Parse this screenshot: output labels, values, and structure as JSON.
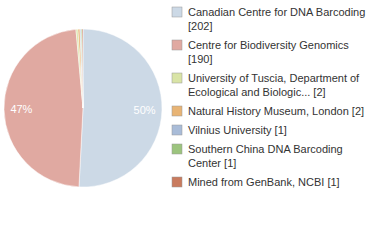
{
  "chart_data": {
    "type": "pie",
    "categories": [
      "Canadian Centre for DNA Barcoding [202]",
      "Centre for Biodiversity Genomics [190]",
      "University of Tuscia, Department of Ecological and Biologic... [2]",
      "Natural History Museum, London [2]",
      "Vilnius University [1]",
      "Southern China DNA Barcoding Center [1]",
      "Mined from GenBank, NCBI [1]"
    ],
    "values": [
      50,
      47,
      0.4,
      0.4,
      0.2,
      0.2,
      0.2
    ],
    "value_labels": [
      "50%",
      "47%",
      null,
      null,
      null,
      null,
      null
    ],
    "colors": [
      "#ccd9e6",
      "#e0a9a1",
      "#d9e4a6",
      "#e8b475",
      "#a9bcd8",
      "#9cc47e",
      "#c97b5e"
    ],
    "data_labels": true,
    "legend": "right"
  }
}
